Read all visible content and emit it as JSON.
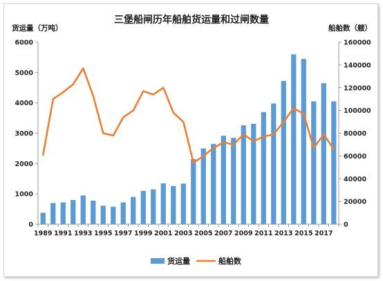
{
  "chart_data": {
    "type": "bar",
    "title": "三堡船闸历年船舶货运量和过闸数量",
    "ylabel": "货运量（万吨）",
    "y2label": "船舶数（艘）",
    "x": [
      1989,
      1990,
      1991,
      1992,
      1993,
      1994,
      1995,
      1996,
      1997,
      1998,
      1999,
      2000,
      2001,
      2002,
      2003,
      2004,
      2005,
      2006,
      2007,
      2008,
      2009,
      2010,
      2011,
      2012,
      2013,
      2014,
      2015,
      2016,
      2017,
      2018
    ],
    "xticks": [
      "1989",
      "1991",
      "1993",
      "1995",
      "1997",
      "1999",
      "2001",
      "2003",
      "2005",
      "2007",
      "2009",
      "2011",
      "2013",
      "2015",
      "2017"
    ],
    "ylim": [
      0,
      6000
    ],
    "yticks": [
      "0",
      "1000",
      "2000",
      "3000",
      "4000",
      "5000",
      "6000"
    ],
    "y2lim": [
      0,
      160000
    ],
    "y2ticks": [
      "0",
      "20000",
      "40000",
      "60000",
      "80000",
      "100000",
      "120000",
      "140000",
      "160000"
    ],
    "series": [
      {
        "name": "货运量",
        "type": "bar",
        "color": "#5B9BD5",
        "axis": "left",
        "values": [
          380,
          700,
          720,
          800,
          950,
          780,
          610,
          580,
          720,
          900,
          1100,
          1150,
          1350,
          1260,
          1340,
          2150,
          2500,
          2650,
          2920,
          2850,
          3260,
          3310,
          3700,
          3980,
          4720,
          5600,
          5450,
          4050,
          4650,
          4050
        ]
      },
      {
        "name": "船舶数",
        "type": "line",
        "color": "#ED7D31",
        "axis": "right",
        "values": [
          61000,
          110000,
          116000,
          123000,
          137000,
          113000,
          80000,
          78000,
          94000,
          100000,
          117000,
          114000,
          120000,
          98000,
          90000,
          54000,
          60000,
          67000,
          72000,
          70000,
          79000,
          73000,
          77000,
          79000,
          90000,
          102000,
          97000,
          67000,
          79000,
          66000
        ]
      }
    ],
    "grid": false,
    "legend_position": "bottom"
  }
}
